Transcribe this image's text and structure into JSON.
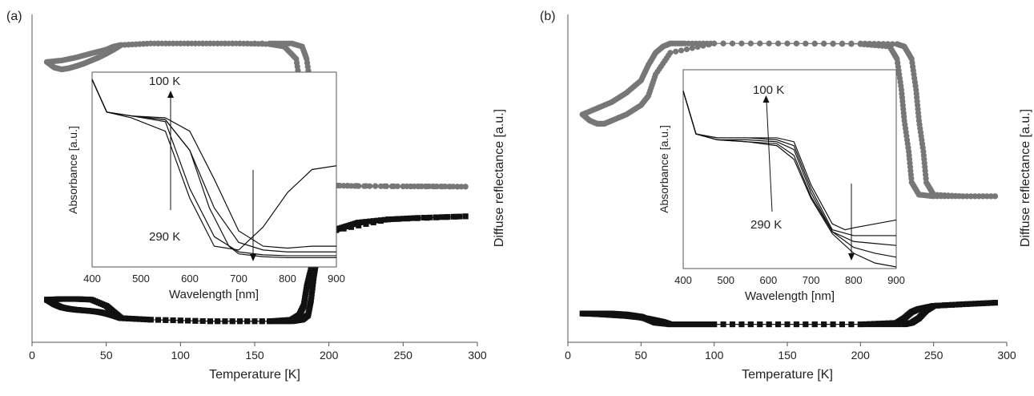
{
  "figure": {
    "panels": [
      {
        "label": "(a)",
        "main": {
          "xlabel": "Temperature [K]",
          "ylabel": "Diffuse reflectance [a.u.]",
          "xlim": [
            0,
            300
          ],
          "xticks": [
            "0",
            "50",
            "100",
            "150",
            "200",
            "250",
            "300"
          ]
        },
        "inset": {
          "xlabel": "Wavelength [nm]",
          "ylabel": "Absorbance [a.u.]",
          "xticks": [
            "400",
            "500",
            "600",
            "700",
            "800",
            "900"
          ],
          "annotations": [
            "100 K",
            "290 K"
          ]
        }
      },
      {
        "label": "(b)",
        "main": {
          "xlabel": "Temperature [K]",
          "ylabel": "Diffuse reflectance [a.u.]",
          "xlim": [
            0,
            300
          ],
          "xticks": [
            "0",
            "50",
            "100",
            "150",
            "200",
            "250",
            "300"
          ]
        },
        "inset": {
          "xlabel": "Wavelength [nm]",
          "ylabel": "Absorbance [a.u.]",
          "xticks": [
            "400",
            "500",
            "600",
            "700",
            "800",
            "900"
          ],
          "annotations": [
            "100 K",
            "290 K"
          ]
        }
      }
    ]
  },
  "chart_data": [
    {
      "type": "scatter",
      "panel": "(a)",
      "xlabel": "Temperature [K]",
      "ylabel": "Diffuse reflectance [a.u.]",
      "xlim": [
        0,
        300
      ],
      "ylim": [
        0,
        1
      ],
      "y_ticks_shown": false,
      "series": [
        {
          "color": "#777777",
          "marker": "circle",
          "x": [
            10,
            20,
            30,
            40,
            50,
            55,
            60,
            80,
            100,
            120,
            140,
            160,
            170,
            178,
            181,
            182,
            183,
            184,
            185,
            188,
            195,
            200,
            220,
            250,
            270,
            292
          ],
          "y": [
            0.89,
            0.895,
            0.905,
            0.918,
            0.93,
            0.94,
            0.945,
            0.95,
            0.95,
            0.95,
            0.95,
            0.948,
            0.94,
            0.9,
            0.8,
            0.7,
            0.6,
            0.52,
            0.5,
            0.49,
            0.49,
            0.49,
            0.488,
            0.487,
            0.487,
            0.486
          ]
        },
        {
          "color": "#777777",
          "marker": "circle",
          "x": [
            10,
            15,
            20,
            25,
            30,
            35,
            40,
            45,
            50,
            55,
            60,
            80,
            120,
            160,
            175,
            182,
            185,
            188,
            190,
            192,
            193,
            195,
            200,
            250,
            292
          ],
          "y": [
            0.89,
            0.872,
            0.866,
            0.87,
            0.877,
            0.885,
            0.895,
            0.905,
            0.917,
            0.93,
            0.945,
            0.95,
            0.95,
            0.95,
            0.95,
            0.94,
            0.9,
            0.8,
            0.7,
            0.6,
            0.55,
            0.5,
            0.49,
            0.487,
            0.486
          ]
        },
        {
          "color": "#111111",
          "marker": "square",
          "x": [
            10,
            20,
            30,
            40,
            50,
            55,
            60,
            80,
            120,
            160,
            175,
            180,
            183,
            185,
            187,
            190,
            193,
            195,
            200,
            210,
            220,
            240,
            260,
            292
          ],
          "y": [
            0.12,
            0.122,
            0.122,
            0.12,
            0.1,
            0.08,
            0.06,
            0.055,
            0.05,
            0.05,
            0.055,
            0.07,
            0.1,
            0.16,
            0.2,
            0.26,
            0.31,
            0.33,
            0.34,
            0.355,
            0.37,
            0.38,
            0.385,
            0.39
          ]
        },
        {
          "color": "#111111",
          "marker": "square",
          "x": [
            10,
            15,
            20,
            25,
            30,
            35,
            40,
            45,
            50,
            55,
            60,
            80,
            120,
            160,
            175,
            182,
            186,
            188,
            190,
            192,
            193,
            195,
            200,
            240,
            292
          ],
          "y": [
            0.12,
            0.105,
            0.095,
            0.09,
            0.087,
            0.085,
            0.083,
            0.08,
            0.075,
            0.068,
            0.06,
            0.055,
            0.05,
            0.05,
            0.05,
            0.055,
            0.07,
            0.12,
            0.2,
            0.26,
            0.3,
            0.33,
            0.34,
            0.38,
            0.39
          ]
        }
      ]
    },
    {
      "type": "line",
      "panel": "(a) inset",
      "xlabel": "Wavelength [nm]",
      "ylabel": "Absorbance [a.u.]",
      "xlim": [
        400,
        900
      ],
      "ylim": [
        0,
        1
      ],
      "y_ticks_shown": false,
      "annotations": [
        "100 K",
        "290 K"
      ],
      "series": [
        {
          "color": "#111111",
          "x": [
            400,
            430,
            480,
            550,
            600,
            650,
            700,
            750,
            800,
            850,
            900
          ],
          "y": [
            0.97,
            0.8,
            0.78,
            0.75,
            0.4,
            0.15,
            0.07,
            0.055,
            0.05,
            0.05,
            0.05
          ]
        },
        {
          "color": "#111111",
          "x": [
            400,
            430,
            480,
            550,
            600,
            650,
            700,
            750,
            800,
            850,
            900
          ],
          "y": [
            0.97,
            0.8,
            0.78,
            0.76,
            0.6,
            0.3,
            0.12,
            0.08,
            0.07,
            0.07,
            0.07
          ]
        },
        {
          "color": "#111111",
          "x": [
            400,
            430,
            480,
            550,
            600,
            650,
            700,
            750,
            800,
            850,
            900
          ],
          "y": [
            0.97,
            0.8,
            0.78,
            0.77,
            0.7,
            0.45,
            0.18,
            0.1,
            0.09,
            0.1,
            0.1
          ]
        },
        {
          "color": "#111111",
          "x": [
            400,
            430,
            480,
            550,
            600,
            640,
            680,
            700,
            750,
            800,
            850,
            900
          ],
          "y": [
            0.97,
            0.8,
            0.78,
            0.76,
            0.6,
            0.3,
            0.1,
            0.06,
            0.045,
            0.04,
            0.04,
            0.04
          ]
        },
        {
          "color": "#111111",
          "x": [
            400,
            430,
            480,
            550,
            600,
            650,
            700,
            750,
            800,
            850,
            900
          ],
          "y": [
            0.97,
            0.8,
            0.77,
            0.7,
            0.35,
            0.1,
            0.08,
            0.2,
            0.38,
            0.5,
            0.52
          ]
        }
      ]
    },
    {
      "type": "scatter",
      "panel": "(b)",
      "xlabel": "Temperature [K]",
      "ylabel": "Diffuse reflectance [a.u.]",
      "xlim": [
        0,
        300
      ],
      "ylim": [
        0,
        1
      ],
      "y_ticks_shown": false,
      "series": [
        {
          "color": "#777777",
          "marker": "circle",
          "x": [
            10,
            20,
            30,
            40,
            50,
            55,
            60,
            65,
            70,
            80,
            100,
            150,
            200,
            220,
            225,
            228,
            230,
            233,
            235,
            240,
            250,
            270,
            292
          ],
          "y": [
            0.72,
            0.74,
            0.76,
            0.79,
            0.83,
            0.88,
            0.92,
            0.94,
            0.95,
            0.95,
            0.95,
            0.95,
            0.948,
            0.94,
            0.9,
            0.8,
            0.7,
            0.6,
            0.5,
            0.46,
            0.455,
            0.455,
            0.455
          ]
        },
        {
          "color": "#777777",
          "marker": "circle",
          "x": [
            10,
            15,
            20,
            25,
            30,
            40,
            50,
            55,
            60,
            70,
            100,
            150,
            200,
            225,
            230,
            235,
            238,
            240,
            243,
            245,
            250,
            270,
            292
          ],
          "y": [
            0.72,
            0.7,
            0.69,
            0.69,
            0.7,
            0.72,
            0.75,
            0.78,
            0.85,
            0.92,
            0.95,
            0.95,
            0.95,
            0.948,
            0.94,
            0.9,
            0.8,
            0.7,
            0.6,
            0.5,
            0.46,
            0.455,
            0.455
          ]
        },
        {
          "color": "#111111",
          "marker": "square",
          "x": [
            10,
            20,
            30,
            40,
            50,
            55,
            60,
            70,
            100,
            150,
            200,
            225,
            230,
            235,
            240,
            250,
            270,
            292
          ],
          "y": [
            0.075,
            0.075,
            0.075,
            0.072,
            0.065,
            0.055,
            0.045,
            0.04,
            0.04,
            0.04,
            0.04,
            0.045,
            0.06,
            0.08,
            0.09,
            0.1,
            0.105,
            0.11
          ]
        },
        {
          "color": "#111111",
          "marker": "square",
          "x": [
            10,
            20,
            30,
            40,
            50,
            55,
            60,
            65,
            70,
            100,
            150,
            200,
            230,
            235,
            240,
            245,
            250,
            270,
            292
          ],
          "y": [
            0.075,
            0.073,
            0.07,
            0.067,
            0.062,
            0.058,
            0.053,
            0.048,
            0.04,
            0.04,
            0.04,
            0.04,
            0.04,
            0.045,
            0.06,
            0.085,
            0.1,
            0.105,
            0.11
          ]
        }
      ]
    },
    {
      "type": "line",
      "panel": "(b) inset",
      "xlabel": "Wavelength [nm]",
      "ylabel": "Absorbance [a.u.]",
      "xlim": [
        400,
        900
      ],
      "ylim": [
        0,
        1
      ],
      "y_ticks_shown": false,
      "annotations": [
        "100 K",
        "290 K"
      ],
      "series": [
        {
          "color": "#111111",
          "x": [
            400,
            430,
            480,
            550,
            620,
            660,
            700,
            750,
            800,
            850,
            900
          ],
          "y": [
            0.9,
            0.68,
            0.65,
            0.64,
            0.62,
            0.55,
            0.35,
            0.17,
            0.07,
            0.02,
            0.0
          ]
        },
        {
          "color": "#111111",
          "x": [
            400,
            430,
            480,
            550,
            620,
            660,
            700,
            750,
            800,
            850,
            900
          ],
          "y": [
            0.9,
            0.68,
            0.65,
            0.64,
            0.63,
            0.57,
            0.36,
            0.18,
            0.1,
            0.07,
            0.05
          ]
        },
        {
          "color": "#111111",
          "x": [
            400,
            430,
            480,
            550,
            620,
            660,
            700,
            750,
            800,
            850,
            900
          ],
          "y": [
            0.9,
            0.68,
            0.65,
            0.65,
            0.64,
            0.6,
            0.38,
            0.18,
            0.13,
            0.12,
            0.11
          ]
        },
        {
          "color": "#111111",
          "x": [
            400,
            430,
            480,
            550,
            620,
            660,
            700,
            750,
            800,
            850,
            900
          ],
          "y": [
            0.9,
            0.68,
            0.66,
            0.66,
            0.65,
            0.62,
            0.4,
            0.19,
            0.16,
            0.16,
            0.16
          ]
        },
        {
          "color": "#111111",
          "x": [
            400,
            430,
            480,
            550,
            620,
            660,
            700,
            750,
            780,
            800,
            850,
            900
          ],
          "y": [
            0.9,
            0.68,
            0.66,
            0.66,
            0.66,
            0.64,
            0.42,
            0.22,
            0.19,
            0.2,
            0.22,
            0.24
          ]
        }
      ]
    }
  ]
}
